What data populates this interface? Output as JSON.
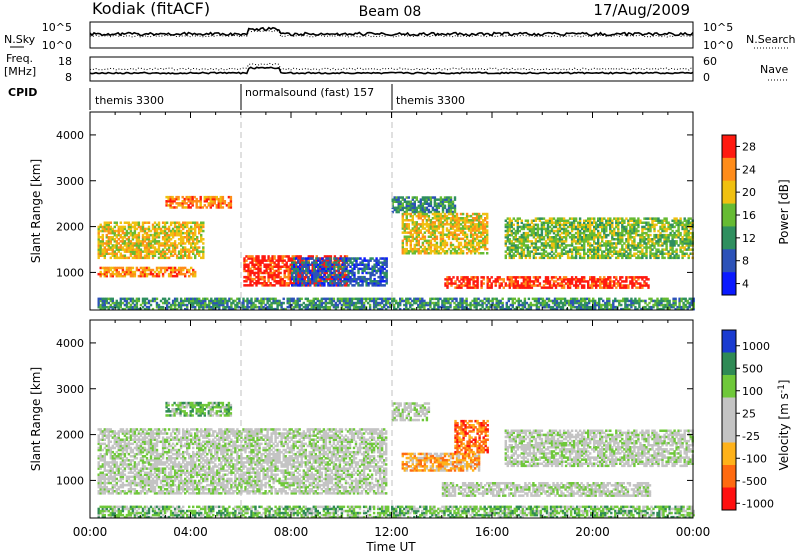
{
  "header": {
    "station": "Kodiak (fitACF)",
    "beam": "Beam 08",
    "date": "17/Aug/2009"
  },
  "top_panels": {
    "nsky_label": "N.Sky",
    "nsky_ticks": [
      "10^5",
      "10^0"
    ],
    "nsearch_label": "N.Search",
    "nsearch_ticks": [
      "10^5",
      "10^0"
    ],
    "freq_label": "Freq.",
    "freq_unit": "[MHz]",
    "freq_ticks": [
      "18",
      "8"
    ],
    "nave_label": "Nave",
    "nave_ticks": [
      "60",
      "0"
    ],
    "cpid_label": "CPID",
    "cpid_segments": [
      {
        "name": "themis 3300",
        "start_hour": 0,
        "end_hour": 6
      },
      {
        "name": "normalsound (fast) 157",
        "start_hour": 6,
        "end_hour": 12
      },
      {
        "name": "themis 3300",
        "start_hour": 12,
        "end_hour": 24
      }
    ]
  },
  "chart_data": [
    {
      "type": "heatmap",
      "title": "",
      "ylabel": "Slant Range [km]",
      "xlabel": "",
      "ylim": [
        180,
        4500
      ],
      "yticks": [
        1000,
        2000,
        3000,
        4000
      ],
      "xlim": [
        0,
        24
      ],
      "colorbar_label": "Power [dB]",
      "colorbar_ticks": [
        "4",
        "8",
        "12",
        "16",
        "20",
        "24",
        "28"
      ],
      "colorbar_colors": [
        "#0a1aff",
        "#2c52b8",
        "#2f8f5f",
        "#66bb33",
        "#f0c010",
        "#ff8c1a",
        "#ff1a10"
      ],
      "echo_regions": [
        {
          "t0": 0.3,
          "t1": 4.2,
          "r0": 900,
          "r1": 1100,
          "band": 5
        },
        {
          "t0": 0.3,
          "t1": 4.5,
          "r0": 1300,
          "r1": 2100,
          "band": 4
        },
        {
          "t0": 3.0,
          "t1": 5.6,
          "r0": 2400,
          "r1": 2650,
          "band": 5
        },
        {
          "t0": 6.1,
          "t1": 10.2,
          "r0": 700,
          "r1": 1350,
          "band": 6
        },
        {
          "t0": 8.0,
          "t1": 11.8,
          "r0": 700,
          "r1": 1300,
          "band": 1
        },
        {
          "t0": 12.0,
          "t1": 14.5,
          "r0": 2300,
          "r1": 2650,
          "band": 2
        },
        {
          "t0": 12.4,
          "t1": 15.8,
          "r0": 1400,
          "r1": 2300,
          "band": 4
        },
        {
          "t0": 14.1,
          "t1": 22.2,
          "r0": 650,
          "r1": 900,
          "band": 6
        },
        {
          "t0": 16.5,
          "t1": 24.0,
          "r0": 1300,
          "r1": 2200,
          "band": 3
        },
        {
          "t0": 0.3,
          "t1": 24.0,
          "r0": 180,
          "r1": 420,
          "band": 2
        }
      ]
    },
    {
      "type": "heatmap",
      "title": "",
      "ylabel": "Slant Range [km]",
      "xlabel": "Time UT",
      "ylim": [
        180,
        4500
      ],
      "yticks": [
        1000,
        2000,
        3000,
        4000
      ],
      "xlim": [
        0,
        24
      ],
      "xticks": [
        "00:00",
        "04:00",
        "08:00",
        "12:00",
        "16:00",
        "20:00",
        "00:00"
      ],
      "colorbar_label": "Velocity [m s^-1]",
      "colorbar_ticks": [
        "1000",
        "500",
        "100",
        "25",
        "-25",
        "-100",
        "-500",
        "-1000"
      ],
      "colorbar_colors": [
        "#1a3bd0",
        "#2f8a55",
        "#6fc83a",
        "#c4c4c4",
        "#c4c4c4",
        "#ffb21a",
        "#ff6a10",
        "#ff1010"
      ],
      "echo_regions": [
        {
          "t0": 0.3,
          "t1": 11.8,
          "r0": 700,
          "r1": 2100,
          "band": 3
        },
        {
          "t0": 3.0,
          "t1": 5.6,
          "r0": 2400,
          "r1": 2700,
          "band": 2
        },
        {
          "t0": 12.4,
          "t1": 15.5,
          "r0": 1200,
          "r1": 1600,
          "band": 5
        },
        {
          "t0": 14.5,
          "t1": 15.8,
          "r0": 1600,
          "r1": 2300,
          "band": 6
        },
        {
          "t0": 12.0,
          "t1": 13.5,
          "r0": 2300,
          "r1": 2700,
          "band": 3
        },
        {
          "t0": 14.0,
          "t1": 22.3,
          "r0": 650,
          "r1": 950,
          "band": 3
        },
        {
          "t0": 16.5,
          "t1": 24.0,
          "r0": 1300,
          "r1": 2100,
          "band": 3
        },
        {
          "t0": 0.3,
          "t1": 24.0,
          "r0": 180,
          "r1": 420,
          "band": 2
        }
      ]
    }
  ]
}
